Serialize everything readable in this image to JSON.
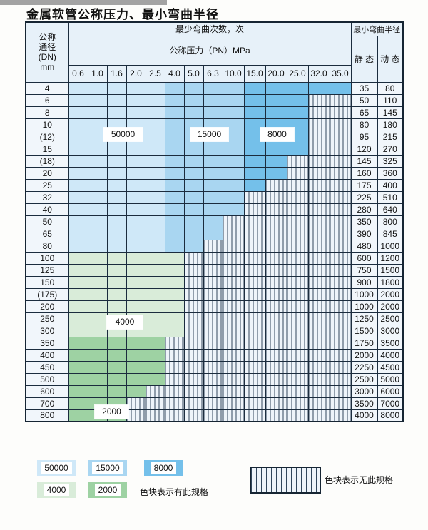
{
  "title": "金属软管公称压力、最小弯曲半径",
  "colors": {
    "c50000": "#cfe8f8",
    "c15000": "#a9d6f1",
    "c8000": "#74c0ea",
    "c4000": "#d9ecd9",
    "c2000": "#9ed2a3",
    "hatch_bg": "#eef4fa",
    "header_bg": "#e7f1f9",
    "grid_line": "#1b2c3e"
  },
  "table": {
    "header": {
      "dn_lines": [
        "公称",
        "通径",
        "(DN)",
        "mm"
      ],
      "bend_cycles_label": "最少弯曲次数，次",
      "pressure_label": "公称压力（PN）MPa",
      "pressure_columns": [
        "0.6",
        "1.0",
        "1.6",
        "2.0",
        "2.5",
        "4.0",
        "5.0",
        "6.3",
        "10.0",
        "15.0",
        "20.0",
        "25.0",
        "32.0",
        "35.0"
      ],
      "radius_label": "最小弯曲半径",
      "static_label": "静 态",
      "dynamic_label": "动 态"
    },
    "shade_rule": {
      "blue_50000_cols": [
        "0.6",
        "1.0",
        "1.6",
        "2.0",
        "2.5"
      ],
      "blue_15000_cols": [
        "4.0",
        "5.0",
        "6.3",
        "10.0"
      ],
      "blue_8000_cols": [
        "15.0",
        "20.0",
        "25.0",
        "32.0",
        "35.0"
      ]
    },
    "rows": [
      {
        "dn": "4",
        "zone": "blue",
        "max_pressure": "35.0",
        "static": "35",
        "dynamic": "80"
      },
      {
        "dn": "6",
        "zone": "blue",
        "max_pressure": "25.0",
        "static": "50",
        "dynamic": "110"
      },
      {
        "dn": "8",
        "zone": "blue",
        "max_pressure": "25.0",
        "static": "65",
        "dynamic": "145"
      },
      {
        "dn": "10",
        "zone": "blue",
        "max_pressure": "25.0",
        "static": "80",
        "dynamic": "180"
      },
      {
        "dn": "(12)",
        "zone": "blue",
        "max_pressure": "25.0",
        "static": "95",
        "dynamic": "215"
      },
      {
        "dn": "15",
        "zone": "blue",
        "max_pressure": "25.0",
        "static": "120",
        "dynamic": "270"
      },
      {
        "dn": "(18)",
        "zone": "blue",
        "max_pressure": "20.0",
        "static": "145",
        "dynamic": "325"
      },
      {
        "dn": "20",
        "zone": "blue",
        "max_pressure": "20.0",
        "static": "160",
        "dynamic": "360"
      },
      {
        "dn": "25",
        "zone": "blue",
        "max_pressure": "15.0",
        "static": "175",
        "dynamic": "400"
      },
      {
        "dn": "32",
        "zone": "blue",
        "max_pressure": "10.0",
        "static": "225",
        "dynamic": "510"
      },
      {
        "dn": "40",
        "zone": "blue",
        "max_pressure": "10.0",
        "static": "280",
        "dynamic": "640"
      },
      {
        "dn": "50",
        "zone": "blue",
        "max_pressure": "6.3",
        "static": "350",
        "dynamic": "800"
      },
      {
        "dn": "65",
        "zone": "blue",
        "max_pressure": "6.3",
        "static": "390",
        "dynamic": "845"
      },
      {
        "dn": "80",
        "zone": "blue",
        "max_pressure": "5.0",
        "static": "480",
        "dynamic": "1000"
      },
      {
        "dn": "100",
        "zone": "g4000",
        "max_pressure": "4.0",
        "static": "600",
        "dynamic": "1200"
      },
      {
        "dn": "125",
        "zone": "g4000",
        "max_pressure": "4.0",
        "static": "750",
        "dynamic": "1500"
      },
      {
        "dn": "150",
        "zone": "g4000",
        "max_pressure": "4.0",
        "static": "900",
        "dynamic": "1800"
      },
      {
        "dn": "(175)",
        "zone": "g4000",
        "max_pressure": "4.0",
        "static": "1000",
        "dynamic": "2000"
      },
      {
        "dn": "200",
        "zone": "g4000",
        "max_pressure": "4.0",
        "static": "1000",
        "dynamic": "2000"
      },
      {
        "dn": "250",
        "zone": "g4000",
        "max_pressure": "4.0",
        "static": "1250",
        "dynamic": "2500"
      },
      {
        "dn": "300",
        "zone": "g4000",
        "max_pressure": "4.0",
        "static": "1500",
        "dynamic": "3000"
      },
      {
        "dn": "350",
        "zone": "g2000",
        "max_pressure": "2.5",
        "static": "1750",
        "dynamic": "3500"
      },
      {
        "dn": "400",
        "zone": "g2000",
        "max_pressure": "2.5",
        "static": "2000",
        "dynamic": "4000"
      },
      {
        "dn": "450",
        "zone": "g2000",
        "max_pressure": "2.5",
        "static": "2250",
        "dynamic": "4500"
      },
      {
        "dn": "500",
        "zone": "g2000",
        "max_pressure": "2.5",
        "static": "2500",
        "dynamic": "5000"
      },
      {
        "dn": "600",
        "zone": "g2000",
        "max_pressure": "2.0",
        "static": "3000",
        "dynamic": "6000"
      },
      {
        "dn": "700",
        "zone": "g2000",
        "max_pressure": "1.6",
        "static": "3500",
        "dynamic": "7000"
      },
      {
        "dn": "800",
        "zone": "g2000",
        "max_pressure": "1.6",
        "static": "4000",
        "dynamic": "8000"
      }
    ],
    "overlay_labels": [
      {
        "text": "50000"
      },
      {
        "text": "15000"
      },
      {
        "text": "8000"
      },
      {
        "text": "4000"
      },
      {
        "text": "2000"
      }
    ]
  },
  "legend": {
    "items": [
      {
        "value": "50000",
        "color_key": "c50000"
      },
      {
        "value": "15000",
        "color_key": "c15000"
      },
      {
        "value": "8000",
        "color_key": "c8000"
      },
      {
        "value": "4000",
        "color_key": "c4000"
      },
      {
        "value": "2000",
        "color_key": "c2000"
      }
    ],
    "has_spec_text": "色块表示有此规格",
    "no_spec_text": "色块表示无此规格"
  }
}
